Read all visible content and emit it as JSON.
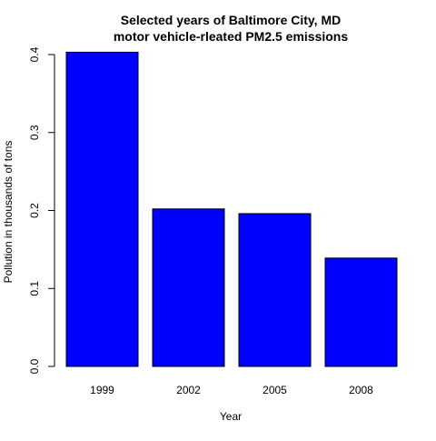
{
  "chart_data": {
    "type": "bar",
    "title_line1": "Selected years of Baltimore City, MD",
    "title_line2": "motor vehicle-rleated PM2.5 emissions",
    "xlabel": "Year",
    "ylabel": "Pollution in thousands of tons",
    "categories": [
      "1999",
      "2002",
      "2005",
      "2008"
    ],
    "values": [
      0.403,
      0.202,
      0.196,
      0.139
    ],
    "ylim": [
      0,
      0.4
    ],
    "yticks": [
      {
        "value": 0.0,
        "label": "0.0"
      },
      {
        "value": 0.1,
        "label": "0.1"
      },
      {
        "value": 0.2,
        "label": "0.2"
      },
      {
        "value": 0.3,
        "label": "0.3"
      },
      {
        "value": 0.4,
        "label": "0.4"
      }
    ],
    "bar_color": "#0000ff",
    "bar_stroke": "#000000",
    "grid": false,
    "legend": "none"
  }
}
